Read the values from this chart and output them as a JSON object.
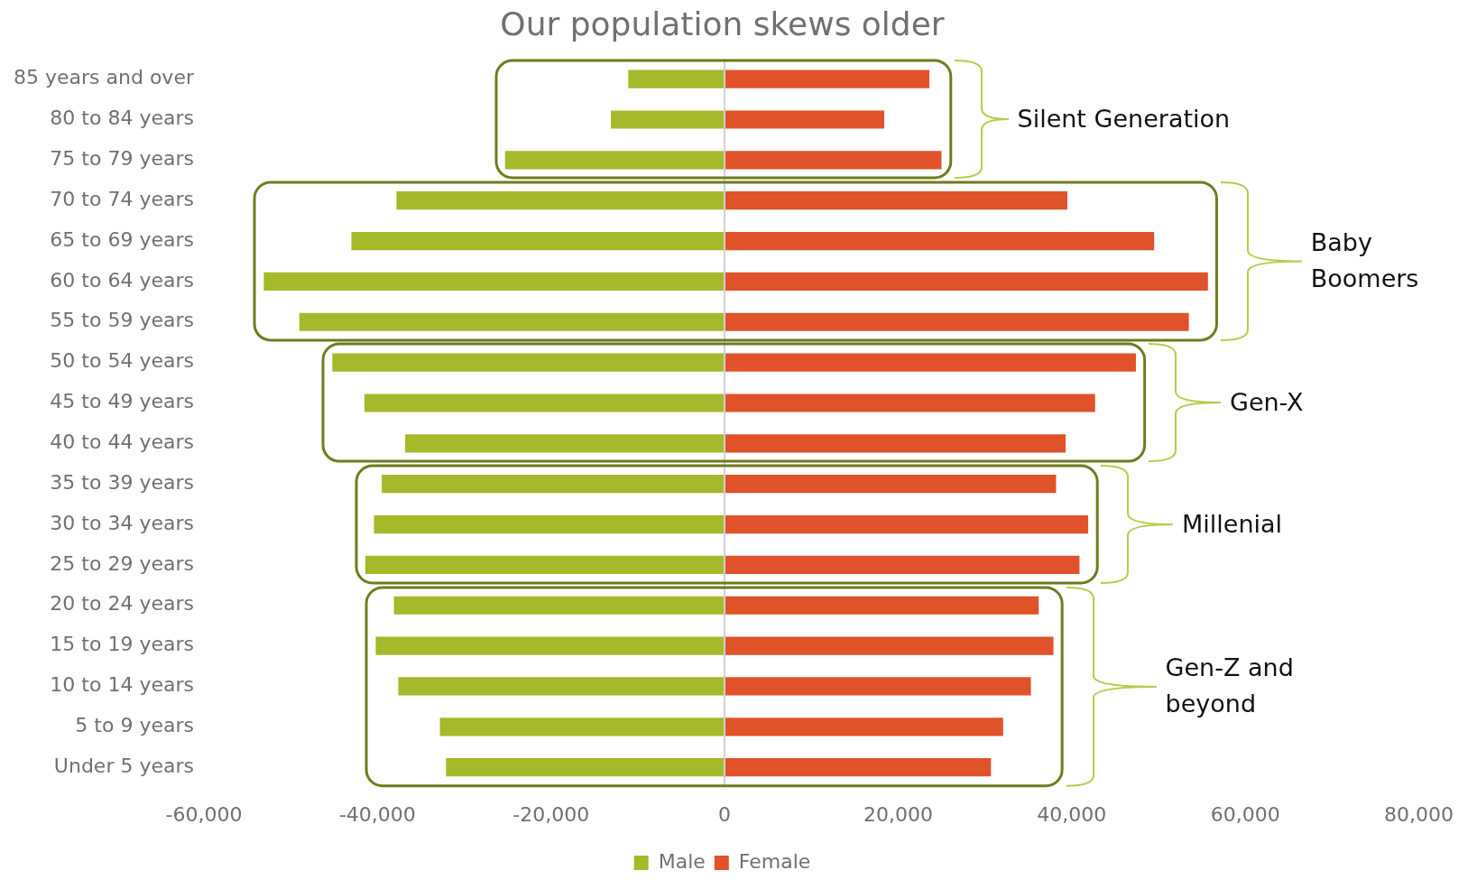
{
  "chart_data": {
    "type": "bar",
    "orientation": "horizontal",
    "stacked": true,
    "title": "Our population skews older",
    "categories": [
      "85 years and over",
      "80 to 84 years",
      "75 to 79 years",
      "70 to 74 years",
      "65 to 69 years",
      "60 to 64 years",
      "55 to 59 years",
      "50 to 54 years",
      "45 to 49 years",
      "40 to 44 years",
      "35 to 39 years",
      "30 to 34 years",
      "25 to 29 years",
      "20 to 24 years",
      "15 to 19 years",
      "10 to 14 years",
      "5 to 9 years",
      "Under 5 years"
    ],
    "series": [
      {
        "name": "Male",
        "color": "#a5b92a",
        "values": [
          -11100,
          -13100,
          -25300,
          -37800,
          -43000,
          -53100,
          -49000,
          -45200,
          -41500,
          -36800,
          -39500,
          -40400,
          -41400,
          -38100,
          -40200,
          -37600,
          -32800,
          -32100
        ]
      },
      {
        "name": "Female",
        "color": "#e0522a",
        "values": [
          23600,
          18400,
          25000,
          39500,
          49500,
          55700,
          53500,
          47400,
          42700,
          39300,
          38200,
          41900,
          40900,
          36200,
          37900,
          35300,
          32100,
          30700
        ]
      }
    ],
    "xlim": [
      -60000,
      80000
    ],
    "xticks": [
      {
        "value": -60000,
        "label": "-60,000"
      },
      {
        "value": -40000,
        "label": "-40,000"
      },
      {
        "value": -20000,
        "label": "-20,000"
      },
      {
        "value": 0,
        "label": "0"
      },
      {
        "value": 20000,
        "label": "20,000"
      },
      {
        "value": 40000,
        "label": "40,000"
      },
      {
        "value": 60000,
        "label": "60,000"
      },
      {
        "value": 80000,
        "label": "80,000"
      }
    ],
    "ref_lines": [
      {
        "axis": "x",
        "value": 0,
        "color": "#d0d0d0"
      }
    ],
    "legend": "bottom",
    "annotations": [
      "Silent Generation",
      "Baby Boomers",
      "Gen-X",
      "Millenial",
      "Gen-Z and beyond"
    ]
  }
}
